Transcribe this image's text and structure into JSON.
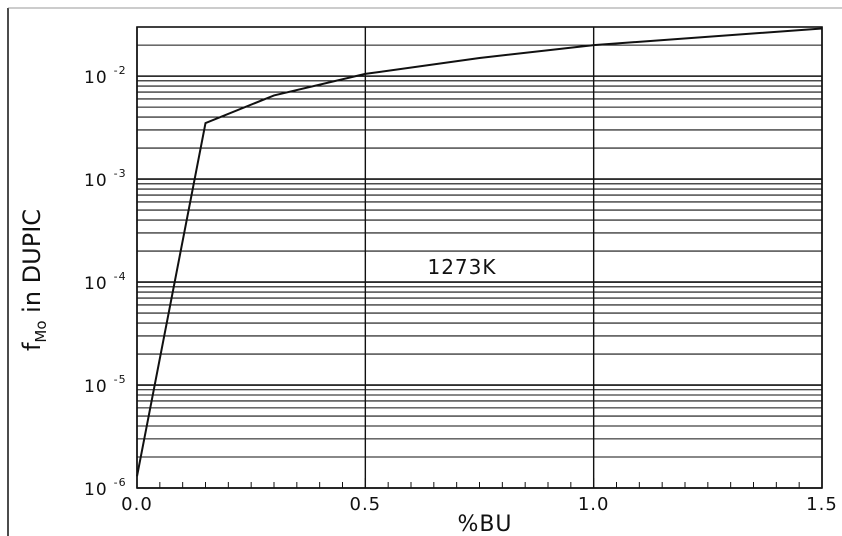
{
  "chart_data": {
    "type": "line",
    "title": "",
    "xlabel": "%BU",
    "ylabel_main": "f",
    "ylabel_sub": "Mo",
    "ylabel_rest": " in DUPIC",
    "annotation": "1273K",
    "xscale": "linear",
    "yscale": "log",
    "xlim": [
      0.0,
      1.5
    ],
    "ylim": [
      1e-06,
      0.03
    ],
    "x_ticks": [
      0.0,
      0.5,
      1.0,
      1.5
    ],
    "x_tick_labels": [
      "0.0",
      "0.5",
      "1.0",
      "1.5"
    ],
    "y_ticks": [
      1e-06,
      1e-05,
      0.0001,
      0.001,
      0.01
    ],
    "y_tick_labels": [
      {
        "base": "10",
        "exp": "-6"
      },
      {
        "base": "10",
        "exp": "-5"
      },
      {
        "base": "10",
        "exp": "-4"
      },
      {
        "base": "10",
        "exp": "-3"
      },
      {
        "base": "10",
        "exp": "-2"
      }
    ],
    "grid": true,
    "series": [
      {
        "x": [
          0.0,
          0.15,
          0.3,
          0.5,
          0.75,
          1.0,
          1.5
        ],
        "y": [
          1.3e-06,
          0.0035,
          0.0065,
          0.0105,
          0.015,
          0.02,
          0.029
        ]
      }
    ],
    "color": "#111111"
  }
}
